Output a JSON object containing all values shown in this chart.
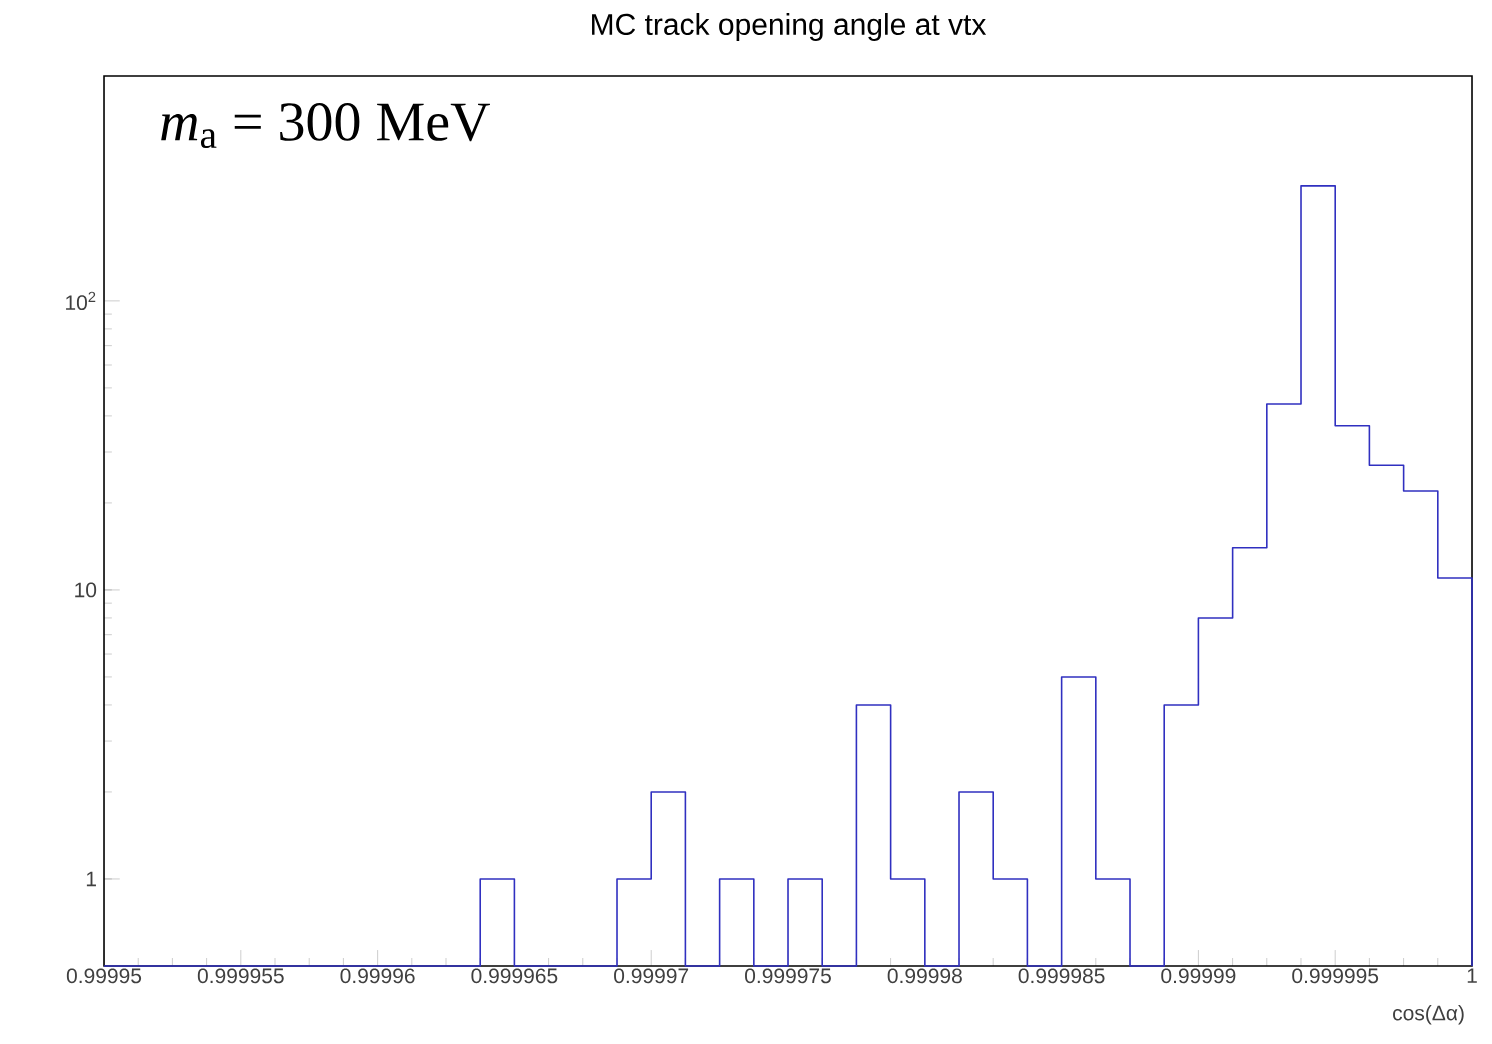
{
  "chart_data": {
    "type": "histogram",
    "title": "MC track opening angle at vtx",
    "xlabel": "cos(Δα)",
    "annotations": [
      "*m*$_{a}$ = 300 MeV"
    ],
    "bins": [
      0.99995,
      0.99995125,
      0.9999525,
      0.99995375,
      0.999955,
      0.99995625,
      0.9999575,
      0.99995875,
      0.99996,
      0.99996125,
      0.9999625,
      0.99996375,
      0.999965,
      0.99996625,
      0.9999675,
      0.99996875,
      0.99997,
      0.99997125,
      0.9999725,
      0.99997375,
      0.999975,
      0.99997625,
      0.9999775,
      0.99997875,
      0.99998,
      0.99998125,
      0.9999825,
      0.99998375,
      0.999985,
      0.99998625,
      0.9999875,
      0.99998875,
      0.99999,
      0.99999125,
      0.9999925,
      0.99999375,
      0.999995,
      0.99999625,
      0.9999975,
      0.99999875,
      1
    ],
    "values": [
      null,
      null,
      null,
      null,
      null,
      null,
      null,
      null,
      null,
      null,
      null,
      1,
      null,
      null,
      null,
      1,
      2,
      null,
      1,
      null,
      1,
      null,
      4,
      1,
      null,
      2,
      1,
      null,
      5,
      1,
      null,
      4,
      8,
      14,
      44,
      250,
      37,
      27,
      22,
      11
    ],
    "color": "#3030c0",
    "log": "y",
    "xlim": [
      0.99995,
      1
    ],
    "ylim": [
      0.5,
      600
    ],
    "xticks": [
      0.99995,
      0.999955,
      0.99996,
      0.999965,
      0.99997,
      0.999975,
      0.99998,
      0.999985,
      0.99999,
      0.999995,
      1
    ],
    "yticks": [
      1,
      10,
      {
        "value": 100,
        "label": "10$^{2}$"
      }
    ],
    "grid": false
  }
}
